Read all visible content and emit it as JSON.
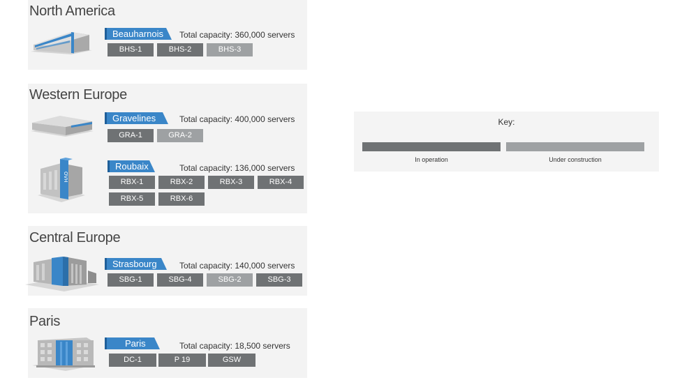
{
  "colors": {
    "in_operation": "#6f7274",
    "under_construction": "#9ea1a3",
    "accent": "#3a86c8",
    "panel_bg": "#f3f3f3"
  },
  "regions": [
    {
      "title": "North America",
      "sites": [
        {
          "name": "Beauharnois",
          "building_icon": "long-datacenter-building-icon",
          "capacity": "Total capacity: 360,000 servers",
          "datacenters": [
            {
              "label": "BHS-1",
              "status": "in_operation"
            },
            {
              "label": "BHS-2",
              "status": "in_operation"
            },
            {
              "label": "BHS-3",
              "status": "under_construction"
            }
          ]
        }
      ]
    },
    {
      "title": "Western Europe",
      "sites": [
        {
          "name": "Gravelines",
          "building_icon": "flat-datacenter-building-icon",
          "capacity": "Total capacity: 400,000 servers",
          "datacenters": [
            {
              "label": "GRA-1",
              "status": "in_operation"
            },
            {
              "label": "GRA-2",
              "status": "under_construction"
            }
          ]
        },
        {
          "name": "Roubaix",
          "building_icon": "ovh-tower-building-icon",
          "capacity": "Total capacity: 136,000 servers",
          "datacenters": [
            {
              "label": "RBX-1",
              "status": "in_operation"
            },
            {
              "label": "RBX-2",
              "status": "in_operation"
            },
            {
              "label": "RBX-3",
              "status": "in_operation"
            },
            {
              "label": "RBX-4",
              "status": "in_operation"
            },
            {
              "label": "RBX-5",
              "status": "in_operation"
            },
            {
              "label": "RBX-6",
              "status": "in_operation"
            }
          ]
        }
      ]
    },
    {
      "title": "Central Europe",
      "sites": [
        {
          "name": "Strasbourg",
          "building_icon": "container-datacenter-building-icon",
          "capacity": "Total capacity: 140,000 servers",
          "datacenters": [
            {
              "label": "SBG-1",
              "status": "in_operation"
            },
            {
              "label": "SBG-4",
              "status": "in_operation"
            },
            {
              "label": "SBG-2",
              "status": "under_construction"
            },
            {
              "label": "SBG-3",
              "status": "in_operation"
            }
          ]
        }
      ]
    },
    {
      "title": "Paris",
      "sites": [
        {
          "name": "Paris",
          "building_icon": "office-datacenter-building-icon",
          "capacity": "Total capacity: 18,500 servers",
          "datacenters": [
            {
              "label": "DC-1",
              "status": "in_operation"
            },
            {
              "label": "P 19",
              "status": "in_operation"
            },
            {
              "label": "GSW",
              "status": "in_operation"
            }
          ]
        }
      ]
    }
  ],
  "key": {
    "title": "Key:",
    "items": [
      {
        "label": "In operation",
        "status": "in_operation"
      },
      {
        "label": "Under construction",
        "status": "under_construction"
      }
    ]
  }
}
